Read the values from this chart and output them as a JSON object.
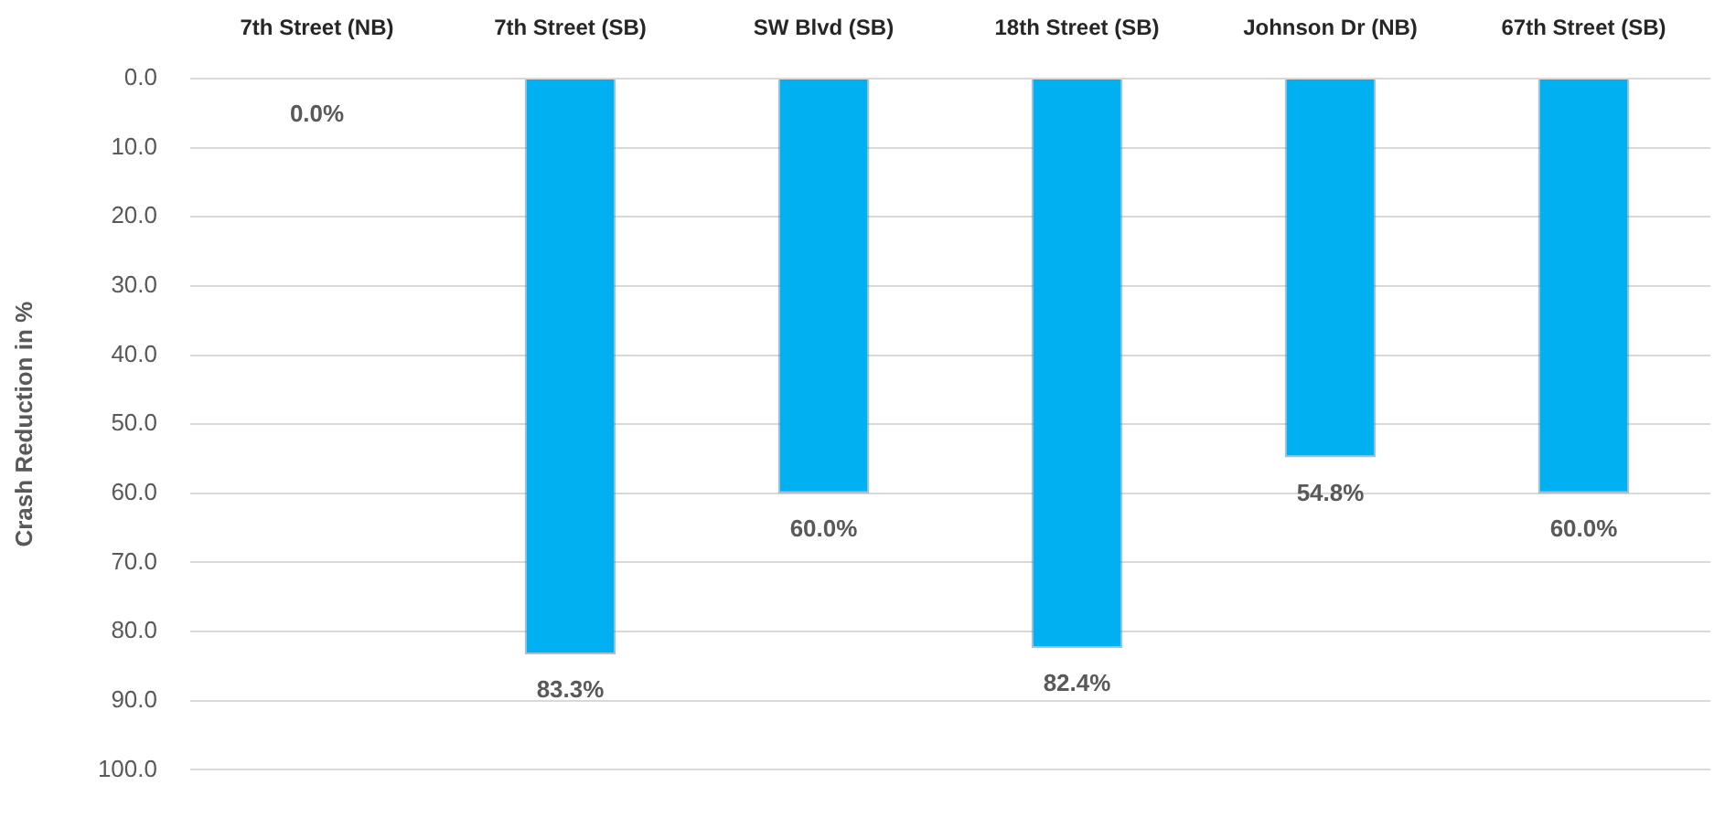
{
  "chart_data": {
    "type": "bar",
    "categories": [
      "7th Street (NB)",
      "7th Street (SB)",
      "SW Blvd (SB)",
      "18th Street (SB)",
      "Johnson Dr (NB)",
      "67th Street (SB)"
    ],
    "values": [
      0,
      83.3,
      60,
      82.4,
      54.8,
      60
    ],
    "color": "#00b0f0",
    "value_labels": [
      "0.0%",
      "83.3%",
      "60.0%",
      "82.4%",
      "54.8%",
      "60.0%"
    ],
    "ylabel": "Crash Reduction in %",
    "ylim": [
      100,
      0
    ],
    "yticks": [
      {
        "value": 0,
        "label": "0.0"
      },
      {
        "value": 10,
        "label": "10.0"
      },
      {
        "value": 20,
        "label": "20.0"
      },
      {
        "value": 30,
        "label": "30.0"
      },
      {
        "value": 40,
        "label": "40.0"
      },
      {
        "value": 50,
        "label": "50.0"
      },
      {
        "value": 60,
        "label": "60.0"
      },
      {
        "value": 70,
        "label": "70.0"
      },
      {
        "value": 80,
        "label": "80.0"
      },
      {
        "value": 90,
        "label": "90.0"
      },
      {
        "value": 100,
        "label": "100.0"
      }
    ],
    "grid": "y"
  }
}
